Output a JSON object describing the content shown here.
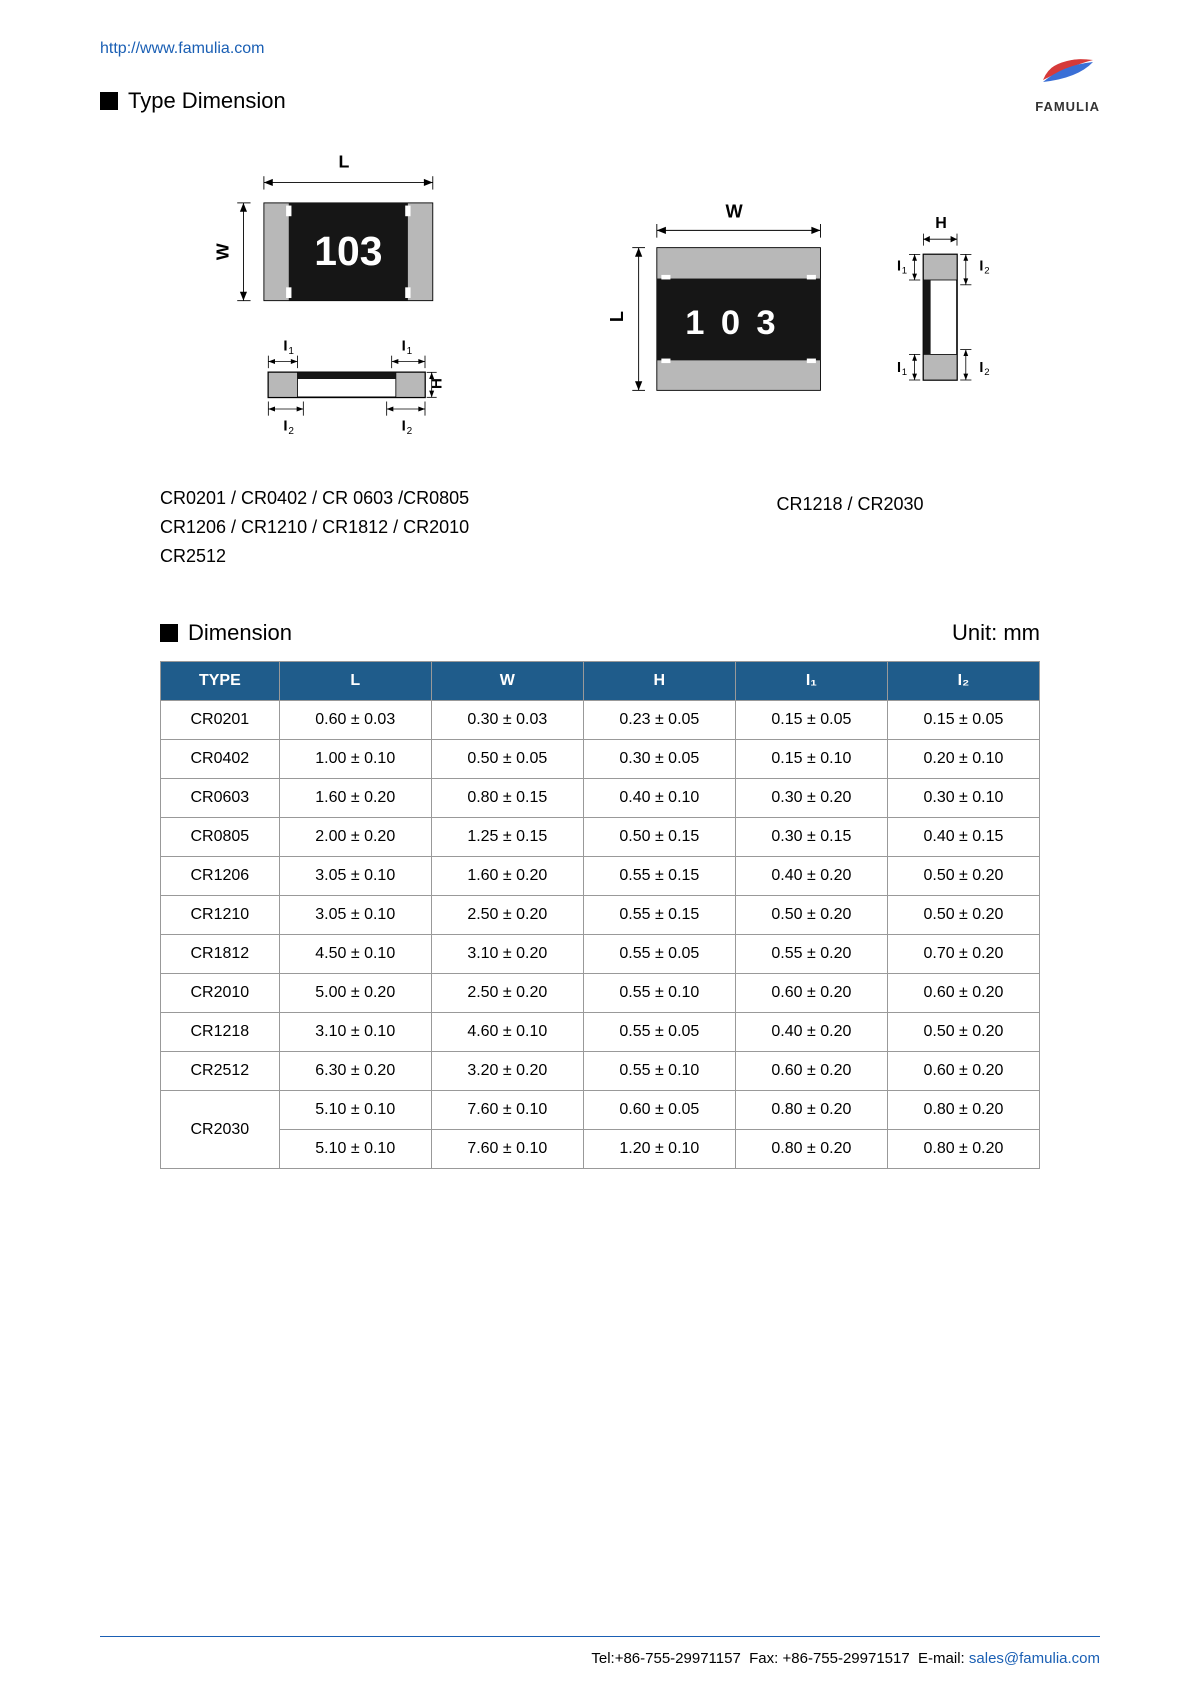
{
  "header": {
    "url": "http://www.famulia.com",
    "logo_text": "FAMULIA",
    "section_title": "Type Dimension"
  },
  "diagrams": {
    "component_marking": "103",
    "component_marking_spaced": "1 0 3",
    "dim_L": "L",
    "dim_W": "W",
    "dim_H": "H",
    "dim_I1": "I",
    "dim_I2": "I",
    "sub1": "1",
    "sub2": "2",
    "left_caption_l1": "CR0201 / CR0402 / CR 0603 /CR0805",
    "left_caption_l2": "CR1206 / CR1210 / CR1812 / CR2010",
    "left_caption_l3": "CR2512",
    "right_caption": "CR1218 / CR2030"
  },
  "dimension_section": {
    "title": "Dimension",
    "unit": "Unit: mm",
    "columns": [
      "TYPE",
      "L",
      "W",
      "H",
      "I₁",
      "I₂"
    ],
    "rows": [
      {
        "type": "CR0201",
        "l": "0.60 ± 0.03",
        "w": "0.30 ± 0.03",
        "h": "0.23 ± 0.05",
        "i1": "0.15 ± 0.05",
        "i2": "0.15 ± 0.05",
        "rowspan": 1
      },
      {
        "type": "CR0402",
        "l": "1.00 ± 0.10",
        "w": "0.50 ± 0.05",
        "h": "0.30 ± 0.05",
        "i1": "0.15 ± 0.10",
        "i2": "0.20 ± 0.10",
        "rowspan": 1
      },
      {
        "type": "CR0603",
        "l": "1.60 ± 0.20",
        "w": "0.80 ± 0.15",
        "h": "0.40 ± 0.10",
        "i1": "0.30 ± 0.20",
        "i2": "0.30 ± 0.10",
        "rowspan": 1
      },
      {
        "type": "CR0805",
        "l": "2.00 ± 0.20",
        "w": "1.25 ± 0.15",
        "h": "0.50 ± 0.15",
        "i1": "0.30 ± 0.15",
        "i2": "0.40 ± 0.15",
        "rowspan": 1
      },
      {
        "type": "CR1206",
        "l": "3.05 ± 0.10",
        "w": "1.60 ± 0.20",
        "h": "0.55 ± 0.15",
        "i1": "0.40 ± 0.20",
        "i2": "0.50 ± 0.20",
        "rowspan": 1
      },
      {
        "type": "CR1210",
        "l": "3.05 ± 0.10",
        "w": "2.50 ± 0.20",
        "h": "0.55 ± 0.15",
        "i1": "0.50 ± 0.20",
        "i2": "0.50 ± 0.20",
        "rowspan": 1
      },
      {
        "type": "CR1812",
        "l": "4.50 ± 0.10",
        "w": "3.10 ± 0.20",
        "h": "0.55 ± 0.05",
        "i1": "0.55 ± 0.20",
        "i2": "0.70 ± 0.20",
        "rowspan": 1
      },
      {
        "type": "CR2010",
        "l": "5.00 ± 0.20",
        "w": "2.50 ± 0.20",
        "h": "0.55 ± 0.10",
        "i1": "0.60 ± 0.20",
        "i2": "0.60 ± 0.20",
        "rowspan": 1
      },
      {
        "type": "CR1218",
        "l": "3.10 ± 0.10",
        "w": "4.60 ± 0.10",
        "h": "0.55 ± 0.05",
        "i1": "0.40 ± 0.20",
        "i2": "0.50 ± 0.20",
        "rowspan": 1
      },
      {
        "type": "CR2512",
        "l": "6.30 ± 0.20",
        "w": "3.20 ± 0.20",
        "h": "0.55 ± 0.10",
        "i1": "0.60 ± 0.20",
        "i2": "0.60 ± 0.20",
        "rowspan": 1
      },
      {
        "type": "CR2030",
        "l": "5.10 ± 0.10",
        "w": "7.60 ± 0.10",
        "h": "0.60 ± 0.05",
        "i1": "0.80 ± 0.20",
        "i2": "0.80 ± 0.20",
        "rowspan": 2
      },
      {
        "type": "",
        "l": "5.10 ± 0.10",
        "w": "7.60 ± 0.10",
        "h": "1.20 ± 0.10",
        "i1": "0.80 ± 0.20",
        "i2": "0.80 ± 0.20",
        "rowspan": 0
      }
    ]
  },
  "footer": {
    "tel_label": "Tel:",
    "tel": "+86-755-29971157",
    "fax_label": "Fax:",
    "fax": "+86-755-29971517",
    "email_label": "E-mail:",
    "email": "sales@famulia.com"
  },
  "colors": {
    "link": "#1a5fb4",
    "table_header_bg": "#1f5c8b",
    "component_body": "#161616",
    "component_term": "#b8b8b8",
    "logo_red": "#d63a3a",
    "logo_blue": "#3a6fd6"
  }
}
